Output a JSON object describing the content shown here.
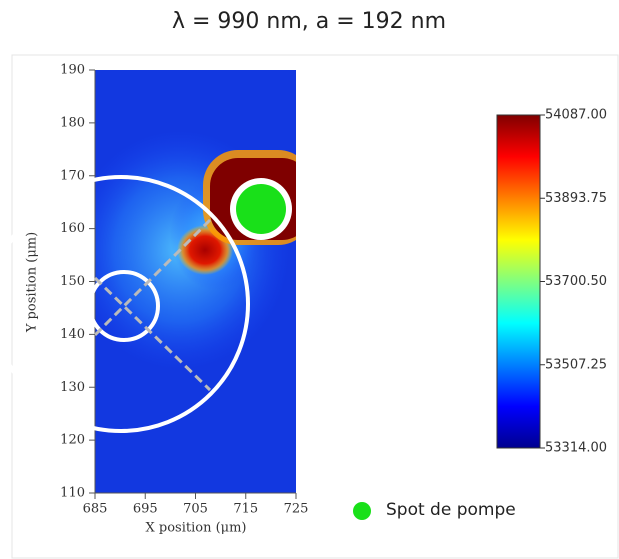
{
  "chart_data": {
    "type": "heatmap",
    "title": "λ = 990 nm, a = 192 nm",
    "x_label": "X position (μm)",
    "y_label": "Y position (μm)",
    "xlim": [
      685,
      725
    ],
    "xticks": [
      685,
      695,
      705,
      715,
      725
    ],
    "ylim": [
      110,
      190
    ],
    "yticks": [
      110,
      120,
      130,
      140,
      150,
      160,
      170,
      180,
      190
    ],
    "colorbar": {
      "range": [
        53314,
        54087
      ],
      "ticks": [
        {
          "value": 53314,
          "label": "53314.00"
        },
        {
          "value": 53507.25,
          "label": "53507.25"
        },
        {
          "value": 53700.5,
          "label": "53700.50"
        },
        {
          "value": 53893.75,
          "label": "53893.75"
        },
        {
          "value": 54087,
          "label": "54087.00"
        }
      ],
      "colors": [
        "#00008f",
        "#0000ff",
        "#0080ff",
        "#00ffff",
        "#80ff80",
        "#ffff00",
        "#ff8000",
        "#ff0000",
        "#800000"
      ]
    },
    "legend": {
      "label": "Spot de pompe",
      "color": "#19e019"
    }
  }
}
